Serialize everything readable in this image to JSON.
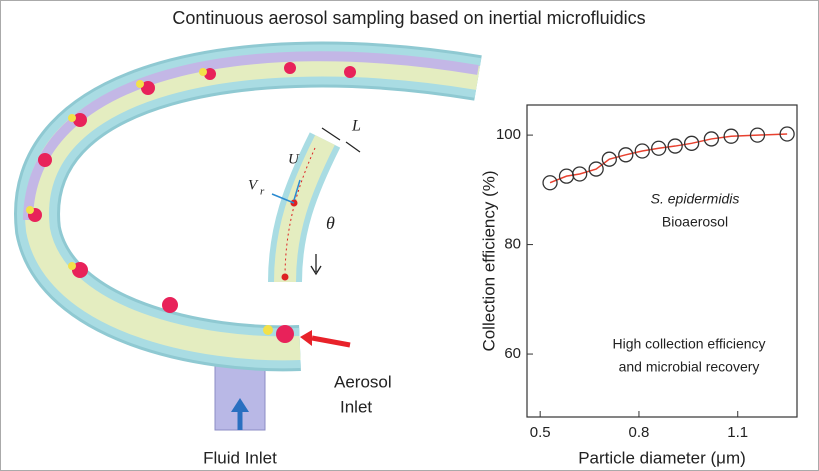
{
  "title": "Continuous aerosol sampling based on inertial microfluidics",
  "diagram": {
    "aerosol_inlet": [
      "Aerosol",
      "Inlet"
    ],
    "fluid_inlet": "Fluid Inlet",
    "symbols": {
      "L": "L",
      "U": "U",
      "V": "V",
      "r": "r",
      "theta": "θ"
    }
  },
  "chart_data": {
    "type": "scatter",
    "x": [
      0.53,
      0.58,
      0.62,
      0.67,
      0.71,
      0.76,
      0.81,
      0.86,
      0.91,
      0.96,
      1.02,
      1.08,
      1.16,
      1.25
    ],
    "values": [
      91.3,
      92.5,
      92.9,
      93.8,
      95.6,
      96.4,
      97.1,
      97.6,
      98.0,
      98.5,
      99.3,
      99.8,
      100.0,
      100.2
    ],
    "color": "#e8412f",
    "marker_color": "#333333",
    "xlim": [
      0.46,
      1.28
    ],
    "ylim": [
      48.5,
      105.5
    ],
    "xticks": [
      0.5,
      0.8,
      1.1
    ],
    "yticks": [
      60,
      80,
      100
    ],
    "xlabel": "Particle diameter (μm)",
    "ylabel": "Collection efficiency (%)",
    "annotations": [
      "S. epidermidis",
      "Bioaerosol",
      "High collection efficiency",
      "and microbial recovery"
    ]
  }
}
